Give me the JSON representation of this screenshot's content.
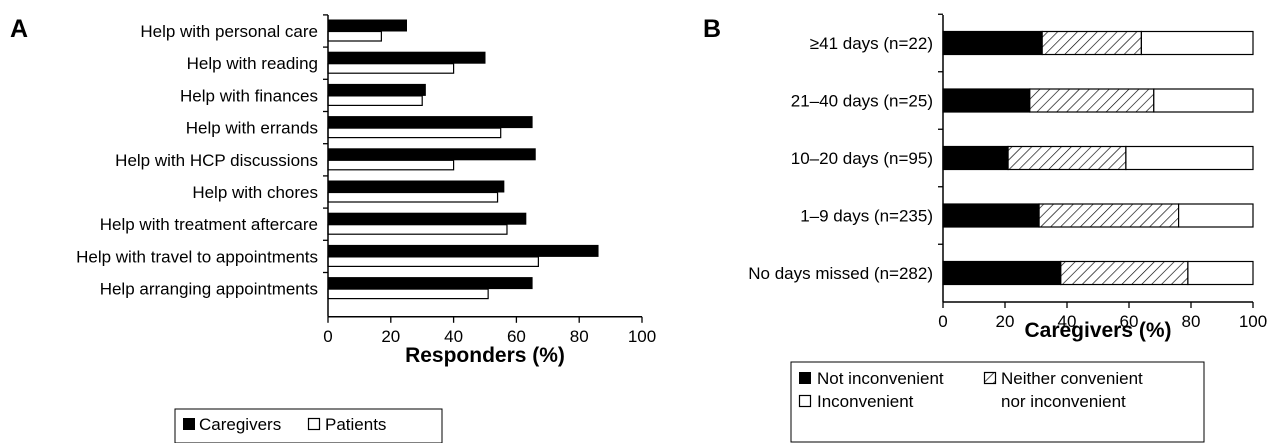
{
  "chart_data": [
    {
      "type": "bar",
      "orientation": "horizontal",
      "panel": "A",
      "xlabel": "Responders (%)",
      "xlim": [
        0,
        100
      ],
      "xticks": [
        "0",
        "20",
        "40",
        "60",
        "80",
        "100"
      ],
      "categories": [
        "Help with personal care",
        "Help with reading",
        "Help with finances",
        "Help with errands",
        "Help with HCP discussions",
        "Help with chores",
        "Help with treatment aftercare",
        "Help with travel to appointments",
        "Help arranging appointments"
      ],
      "series": [
        {
          "name": "Caregivers",
          "color": "#000000",
          "values": [
            25,
            50,
            31,
            65,
            66,
            56,
            63,
            86,
            65
          ]
        },
        {
          "name": "Patients",
          "color": "#ffffff",
          "values": [
            17,
            40,
            30,
            55,
            40,
            54,
            57,
            67,
            51
          ]
        }
      ],
      "legend_position": "bottom",
      "grid": false
    },
    {
      "type": "bar",
      "orientation": "horizontal",
      "stacked": true,
      "panel": "B",
      "xlabel": "Caregivers (%)",
      "xlim": [
        0,
        100
      ],
      "xticks": [
        "0",
        "20",
        "40",
        "60",
        "80",
        "100"
      ],
      "categories": [
        "≥41 days (n=22)",
        "21–40 days (n=25)",
        "10–20 days (n=95)",
        "1–9 days (n=235)",
        "No days missed (n=282)"
      ],
      "series": [
        {
          "name": "Not inconvenient",
          "fill": "solid-black",
          "values": [
            32,
            28,
            21,
            31,
            38
          ]
        },
        {
          "name": "Neither convenient nor inconvenient",
          "fill": "hatched",
          "values": [
            32,
            40,
            38,
            45,
            41
          ]
        },
        {
          "name": "Inconvenient",
          "fill": "white",
          "values": [
            36,
            32,
            41,
            24,
            21
          ]
        }
      ],
      "legend_position": "bottom",
      "grid": false
    }
  ],
  "legend_a": {
    "caregivers": "Caregivers",
    "patients": "Patients"
  },
  "legend_b": {
    "not_inconvenient": "Not inconvenient",
    "neither_line1": "Neither convenient",
    "neither_line2": "nor inconvenient",
    "inconvenient": "Inconvenient"
  }
}
